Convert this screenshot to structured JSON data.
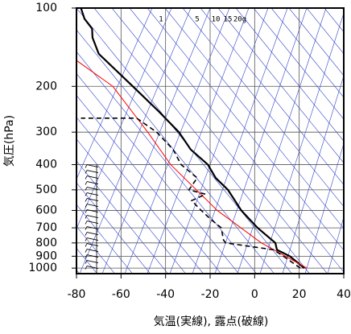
{
  "chart_data": {
    "type": "emagram",
    "x_label": "気温(実線), 露点(破線)",
    "y_label": "気圧(hPa)",
    "xlim": [
      -80,
      40
    ],
    "xticks": [
      -80,
      -60,
      -40,
      -20,
      0,
      20,
      40
    ],
    "ylim": [
      1050,
      100
    ],
    "yticks": [
      100,
      200,
      300,
      400,
      500,
      600,
      700,
      800,
      900,
      1000
    ],
    "y_log": true,
    "grid": true,
    "annotations": [
      "1",
      "5",
      "10",
      "15",
      "20g"
    ],
    "series": [
      {
        "color": "#000000",
        "dash": false,
        "width": 2.2,
        "x": [
          22.3,
          15.8,
          10,
          9.3,
          1.3,
          -6,
          -12,
          -17.5,
          -21,
          -28.7,
          -34,
          -43,
          -54.7,
          -70,
          -72.8,
          -73,
          -76.4,
          -78
        ],
        "y": [
          1000,
          900,
          850,
          800,
          700,
          600,
          500,
          450,
          400,
          350,
          300,
          250,
          200,
          150,
          130,
          120,
          110,
          100
        ]
      },
      {
        "color": "#ff0000",
        "dash": false,
        "width": 1,
        "x": [
          23.5,
          3,
          -16.8,
          -37.7,
          -48,
          -63.7,
          -80
        ],
        "y": [
          1000,
          800,
          600,
          400,
          300,
          200,
          159
        ]
      },
      {
        "color": "#000000",
        "dash": true,
        "width": 1.6,
        "x": [
          20.5,
          12.9,
          8.5,
          -13,
          -14,
          -15,
          -19.6,
          -24,
          -28.3,
          -22,
          -29.5,
          -25.8,
          -33,
          -36.6,
          -44,
          -53,
          -78
        ],
        "y": [
          1000,
          900,
          850,
          800,
          780,
          700,
          650,
          600,
          550,
          520,
          500,
          450,
          400,
          350,
          300,
          265,
          265
        ]
      }
    ]
  }
}
